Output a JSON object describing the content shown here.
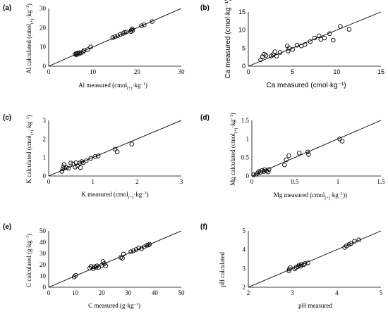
{
  "chart_data": [
    {
      "panel": "(a)",
      "type": "scatter",
      "xlabel": "Al measured (cmol(+)·kg⁻¹)",
      "ylabel": "Al calculated (cmol(+)·kg⁻¹)",
      "xlim": [
        0,
        30
      ],
      "ylim": [
        0,
        30
      ],
      "xticks": [
        "0",
        "10",
        "20",
        "30"
      ],
      "yticks": [
        "0",
        "10",
        "20",
        "30"
      ],
      "line": [
        [
          0,
          0
        ],
        [
          30,
          30
        ]
      ],
      "points": [
        [
          6,
          6.2
        ],
        [
          6.2,
          6.6
        ],
        [
          6.3,
          6.0
        ],
        [
          6.5,
          6.8
        ],
        [
          6.8,
          6.4
        ],
        [
          7.0,
          7.0
        ],
        [
          7.3,
          6.9
        ],
        [
          7.8,
          7.5
        ],
        [
          8.0,
          8.2
        ],
        [
          8.8,
          8.6
        ],
        [
          9.5,
          10.0
        ],
        [
          14.5,
          14.8
        ],
        [
          15.0,
          15.3
        ],
        [
          15.6,
          15.8
        ],
        [
          16.2,
          16.5
        ],
        [
          16.8,
          17.0
        ],
        [
          17.2,
          17.5
        ],
        [
          17.6,
          17.8
        ],
        [
          18.6,
          18.0
        ],
        [
          18.7,
          18.8
        ],
        [
          18.9,
          19.4
        ],
        [
          19.0,
          18.6
        ],
        [
          21.0,
          21.0
        ],
        [
          21.6,
          21.5
        ],
        [
          23.4,
          23.2
        ]
      ]
    },
    {
      "panel": "(b)",
      "type": "scatter",
      "xlabel": "Ca measured (cmol·kg⁻¹)",
      "ylabel": "Ca measured (cmol·kg⁻¹)",
      "xlim": [
        0,
        15
      ],
      "ylim": [
        0,
        15
      ],
      "xticks": [
        "0",
        "5",
        "10",
        "15"
      ],
      "yticks": [
        "0",
        "5",
        "10",
        "15"
      ],
      "line": [
        [
          0,
          0
        ],
        [
          15,
          15
        ]
      ],
      "points": [
        [
          1.4,
          1.8
        ],
        [
          1.6,
          2.6
        ],
        [
          1.8,
          3.3
        ],
        [
          2.0,
          3.0
        ],
        [
          2.6,
          2.8
        ],
        [
          2.8,
          3.2
        ],
        [
          3.0,
          4.0
        ],
        [
          3.2,
          2.8
        ],
        [
          3.6,
          3.8
        ],
        [
          4.5,
          4.2
        ],
        [
          4.6,
          5.0
        ],
        [
          5.0,
          4.6
        ],
        [
          5.5,
          5.8
        ],
        [
          6.0,
          5.6
        ],
        [
          6.4,
          6.0
        ],
        [
          7.0,
          6.8
        ],
        [
          7.5,
          7.8
        ],
        [
          8.0,
          8.4
        ],
        [
          8.6,
          7.8
        ],
        [
          9.2,
          9.0
        ],
        [
          9.6,
          7.2
        ],
        [
          10.4,
          11.0
        ],
        [
          11.4,
          10.2
        ],
        [
          4.4,
          5.6
        ],
        [
          8.2,
          7.4
        ]
      ]
    },
    {
      "panel": "(c)",
      "type": "scatter",
      "xlabel": "K measured (cmol(+)·kg⁻¹)",
      "ylabel": "K calculated (cmol(+)·kg⁻¹)",
      "xlim": [
        0,
        3
      ],
      "ylim": [
        0,
        3
      ],
      "xticks": [
        "0",
        "1",
        "2",
        "3"
      ],
      "yticks": [
        "0",
        "1",
        "2",
        "3"
      ],
      "line": [
        [
          0,
          0
        ],
        [
          3,
          3
        ]
      ],
      "points": [
        [
          0.3,
          0.25
        ],
        [
          0.32,
          0.38
        ],
        [
          0.34,
          0.5
        ],
        [
          0.35,
          0.62
        ],
        [
          0.4,
          0.45
        ],
        [
          0.45,
          0.42
        ],
        [
          0.55,
          0.65
        ],
        [
          0.6,
          0.48
        ],
        [
          0.62,
          0.72
        ],
        [
          0.65,
          0.55
        ],
        [
          0.7,
          0.7
        ],
        [
          0.72,
          0.45
        ],
        [
          0.75,
          0.78
        ],
        [
          0.78,
          0.72
        ],
        [
          0.85,
          0.82
        ],
        [
          0.95,
          0.95
        ],
        [
          1.05,
          1.05
        ],
        [
          1.12,
          1.08
        ],
        [
          1.5,
          1.45
        ],
        [
          1.55,
          1.3
        ],
        [
          1.88,
          1.72
        ],
        [
          0.5,
          0.7
        ]
      ]
    },
    {
      "panel": "(d)",
      "type": "scatter",
      "xlabel": "Mg measured (cmol(+)·kg⁻¹))",
      "ylabel": "Mg calculated (cmol(+)·kg⁻¹)",
      "xlim": [
        0,
        1.5
      ],
      "ylim": [
        0,
        1.5
      ],
      "xticks": [
        "0",
        "0.5",
        "1",
        "1.5"
      ],
      "yticks": [
        "0",
        "0.5",
        "1",
        "1.5"
      ],
      "line": [
        [
          0,
          0
        ],
        [
          1.5,
          1.5
        ]
      ],
      "points": [
        [
          0.02,
          0.03
        ],
        [
          0.05,
          0.05
        ],
        [
          0.07,
          0.08
        ],
        [
          0.08,
          0.12
        ],
        [
          0.1,
          0.1
        ],
        [
          0.12,
          0.15
        ],
        [
          0.14,
          0.12
        ],
        [
          0.15,
          0.17
        ],
        [
          0.17,
          0.14
        ],
        [
          0.19,
          0.11
        ],
        [
          0.2,
          0.18
        ],
        [
          0.38,
          0.3
        ],
        [
          0.4,
          0.44
        ],
        [
          0.43,
          0.55
        ],
        [
          0.55,
          0.62
        ],
        [
          0.65,
          0.65
        ],
        [
          0.66,
          0.58
        ],
        [
          1.02,
          1.0
        ],
        [
          1.05,
          0.94
        ]
      ]
    },
    {
      "panel": "(e)",
      "type": "scatter",
      "xlabel": "C measured (g·kg⁻¹)",
      "ylabel": "C calculated (g·kg⁻¹)",
      "xlim": [
        0,
        50
      ],
      "ylim": [
        0,
        50
      ],
      "xticks": [
        "0",
        "10",
        "20",
        "30",
        "40",
        "50"
      ],
      "yticks": [
        "0",
        "10",
        "20",
        "30",
        "40",
        "50"
      ],
      "line": [
        [
          0,
          0
        ],
        [
          50,
          50
        ]
      ],
      "points": [
        [
          9.6,
          9.2
        ],
        [
          10.2,
          10.5
        ],
        [
          15.5,
          17.0
        ],
        [
          16.0,
          18.5
        ],
        [
          16.8,
          16.5
        ],
        [
          17.2,
          18.2
        ],
        [
          17.8,
          17.8
        ],
        [
          18.2,
          19.0
        ],
        [
          18.8,
          17.5
        ],
        [
          20.0,
          19.5
        ],
        [
          20.5,
          22.8
        ],
        [
          21.0,
          21.0
        ],
        [
          21.5,
          19.0
        ],
        [
          27.2,
          26.5
        ],
        [
          27.8,
          25.8
        ],
        [
          28.2,
          29.5
        ],
        [
          31.0,
          31.5
        ],
        [
          32.0,
          32.5
        ],
        [
          33.0,
          33.5
        ],
        [
          34.0,
          35.0
        ],
        [
          35.0,
          34.2
        ],
        [
          36.0,
          35.8
        ],
        [
          37.0,
          37.2
        ],
        [
          37.6,
          37.5
        ],
        [
          38.0,
          38.2
        ]
      ]
    },
    {
      "panel": "(f)",
      "type": "scatter",
      "xlabel": "pH measured",
      "ylabel": "pH calculated",
      "xlim": [
        2,
        5
      ],
      "ylim": [
        2,
        5
      ],
      "xticks": [
        "2",
        "3",
        "4",
        "5"
      ],
      "yticks": [
        "2",
        "3",
        "4",
        "5"
      ],
      "line": [
        [
          2,
          2
        ],
        [
          5,
          5
        ]
      ],
      "points": [
        [
          2.92,
          2.88
        ],
        [
          2.93,
          2.97
        ],
        [
          2.95,
          3.05
        ],
        [
          3.05,
          2.98
        ],
        [
          3.08,
          3.05
        ],
        [
          3.12,
          3.1
        ],
        [
          3.15,
          3.18
        ],
        [
          3.18,
          3.12
        ],
        [
          3.2,
          3.22
        ],
        [
          3.25,
          3.2
        ],
        [
          3.28,
          3.26
        ],
        [
          3.35,
          3.3
        ],
        [
          4.18,
          4.12
        ],
        [
          4.22,
          4.2
        ],
        [
          4.28,
          4.28
        ],
        [
          4.32,
          4.32
        ],
        [
          4.4,
          4.45
        ],
        [
          4.5,
          4.52
        ]
      ]
    }
  ]
}
